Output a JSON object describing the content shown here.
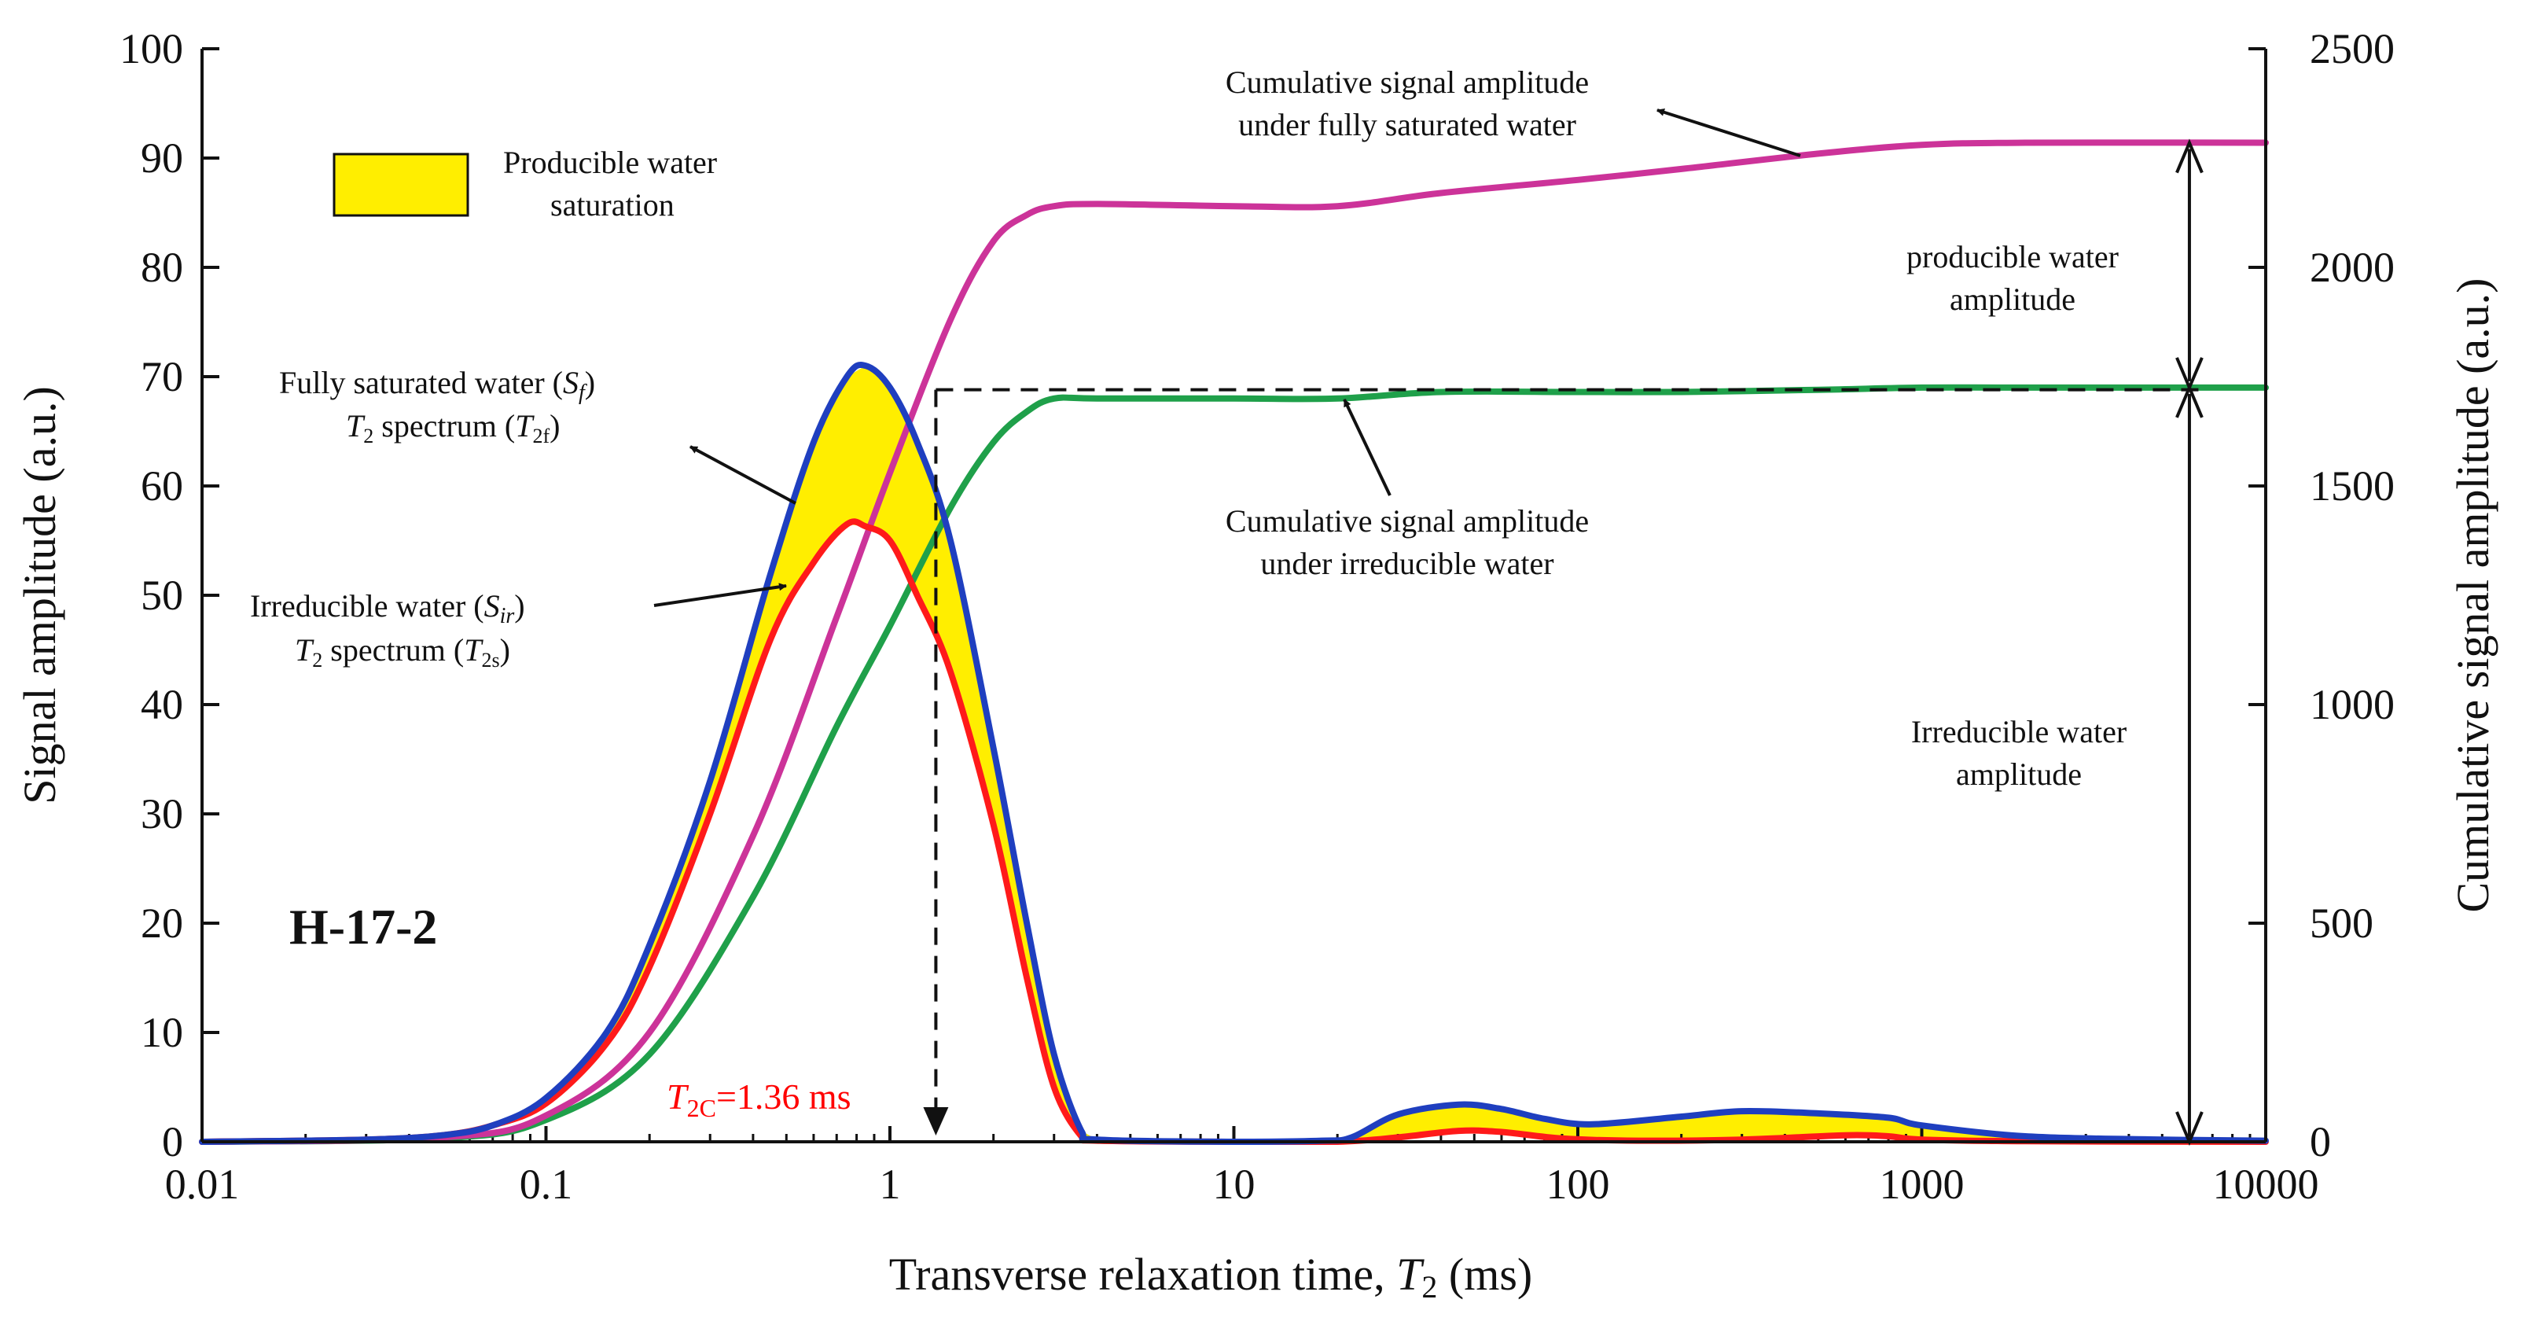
{
  "chart_data": {
    "type": "line",
    "sample_label": "H-17-2",
    "x_axis": {
      "label_prefix": "Transverse relaxation time, ",
      "label_var": "T",
      "label_sub": "2",
      "label_suffix": " (ms)",
      "scale": "log",
      "xlim": [
        0.01,
        10000
      ],
      "ticks": [
        0.01,
        0.1,
        1,
        10,
        100,
        1000,
        10000
      ],
      "tick_labels": [
        "0.01",
        "0.1",
        "1",
        "10",
        "100",
        "1000",
        "10000"
      ]
    },
    "y_axis_left": {
      "label": "Signal amplitude (a.u.)",
      "ylim": [
        0,
        100
      ],
      "ticks": [
        0,
        10,
        20,
        30,
        40,
        50,
        60,
        70,
        80,
        90,
        100
      ],
      "tick_labels": [
        "0",
        "10",
        "20",
        "30",
        "40",
        "50",
        "60",
        "70",
        "80",
        "90",
        "100"
      ]
    },
    "y_axis_right": {
      "label": "Cumulative signal amplitude (a.u.)",
      "ylim": [
        0,
        2500
      ],
      "ticks": [
        0,
        500,
        1000,
        1500,
        2000,
        2500
      ],
      "tick_labels": [
        "0",
        "500",
        "1000",
        "1500",
        "2000",
        "2500"
      ]
    },
    "legend": {
      "position": "top-left",
      "fill_color": "#ffee00",
      "label_line1": "Producible water",
      "label_line2": "saturation"
    },
    "cutoff": {
      "t2c_ms": 1.36,
      "label_main": "T",
      "label_sub": "2C",
      "label_value": "=1.36 ms",
      "color": "#ff0000",
      "cumulative_level": 1720
    },
    "series": [
      {
        "name": "Fully saturated water T2 spectrum",
        "axis": "left",
        "color": "#1f3fbf",
        "x": [
          0.01,
          0.03,
          0.05,
          0.07,
          0.1,
          0.15,
          0.2,
          0.3,
          0.45,
          0.6,
          0.75,
          0.85,
          1.0,
          1.2,
          1.5,
          2.0,
          2.5,
          3.0,
          3.6,
          4.0,
          10,
          18,
          22,
          30,
          45,
          60,
          80,
          110,
          200,
          300,
          500,
          800,
          1000,
          2000,
          5000,
          10000
        ],
        "values": [
          0,
          0.2,
          0.6,
          1.5,
          4,
          10,
          18,
          33,
          52,
          64,
          70,
          71,
          69,
          64,
          55,
          36,
          20,
          8,
          1,
          0.2,
          0,
          0.1,
          0.4,
          2.5,
          3.4,
          3.0,
          2.1,
          1.6,
          2.3,
          2.8,
          2.6,
          2.2,
          1.5,
          0.5,
          0.2,
          0.1
        ]
      },
      {
        "name": "Irreducible water T2 spectrum",
        "axis": "left",
        "color": "#ff1a1a",
        "x": [
          0.01,
          0.03,
          0.05,
          0.07,
          0.1,
          0.15,
          0.2,
          0.3,
          0.45,
          0.6,
          0.75,
          0.85,
          1.0,
          1.2,
          1.5,
          2.0,
          2.5,
          3.0,
          3.6,
          4.0,
          10,
          20,
          30,
          45,
          60,
          90,
          150,
          300,
          600,
          800,
          1000,
          2000,
          10000
        ],
        "values": [
          0,
          0.2,
          0.6,
          1.5,
          3.5,
          9,
          16,
          30,
          46,
          53,
          56.5,
          56.3,
          55,
          50,
          43,
          29,
          15,
          5,
          0.5,
          0.1,
          0,
          0,
          0.4,
          1.0,
          0.9,
          0.3,
          0.1,
          0.2,
          0.6,
          0.5,
          0.2,
          0.05,
          0
        ]
      },
      {
        "name": "Cumulative signal amplitude under fully saturated water",
        "axis": "right",
        "color": "#cc3399",
        "x": [
          0.01,
          0.05,
          0.1,
          0.2,
          0.4,
          0.7,
          1.0,
          1.5,
          2.0,
          2.5,
          3.0,
          4.0,
          10,
          20,
          40,
          100,
          200,
          500,
          1000,
          2000,
          10000
        ],
        "values": [
          0,
          10,
          60,
          250,
          700,
          1200,
          1530,
          1880,
          2060,
          2120,
          2140,
          2145,
          2140,
          2140,
          2170,
          2200,
          2225,
          2260,
          2280,
          2285,
          2285
        ]
      },
      {
        "name": "Cumulative signal amplitude under irreducible water",
        "axis": "right",
        "color": "#1fa04a",
        "x": [
          0.01,
          0.05,
          0.1,
          0.2,
          0.4,
          0.7,
          1.0,
          1.5,
          2.0,
          2.5,
          3.0,
          4.0,
          10,
          20,
          40,
          100,
          200,
          500,
          1000,
          2000,
          10000
        ],
        "values": [
          0,
          8,
          50,
          200,
          560,
          950,
          1180,
          1450,
          1600,
          1670,
          1700,
          1700,
          1700,
          1700,
          1715,
          1715,
          1715,
          1720,
          1725,
          1725,
          1725
        ]
      }
    ],
    "annotations": {
      "cum_full_line1": "Cumulative signal amplitude",
      "cum_full_line2": "under fully saturated water",
      "cum_irr_line1": "Cumulative signal amplitude",
      "cum_irr_line2": "under irreducible water",
      "full_spec_line1_a": "Fully saturated water (",
      "full_spec_line1_var": "S",
      "full_spec_line1_sub": "f",
      "full_spec_line1_b": ")",
      "full_spec_line2_var": "T",
      "full_spec_line2_sub": "2",
      "full_spec_line2_a": "  spectrum (",
      "full_spec_line2_var2": "T",
      "full_spec_line2_sub2": "2f",
      "full_spec_line2_b": ")",
      "irr_spec_line1_a": "Irreducible water (",
      "irr_spec_line1_var": "S",
      "irr_spec_line1_sub": "ir",
      "irr_spec_line1_b": ")",
      "irr_spec_line2_var": "T",
      "irr_spec_line2_sub": "2",
      "irr_spec_line2_a": "  spectrum (",
      "irr_spec_line2_var2": "T",
      "irr_spec_line2_sub2": "2s",
      "irr_spec_line2_b": ")",
      "producible_amp_line1": "producible water",
      "producible_amp_line2": "amplitude",
      "irreducible_amp_line1": "Irreducible water",
      "irreducible_amp_line2": "amplitude"
    }
  }
}
